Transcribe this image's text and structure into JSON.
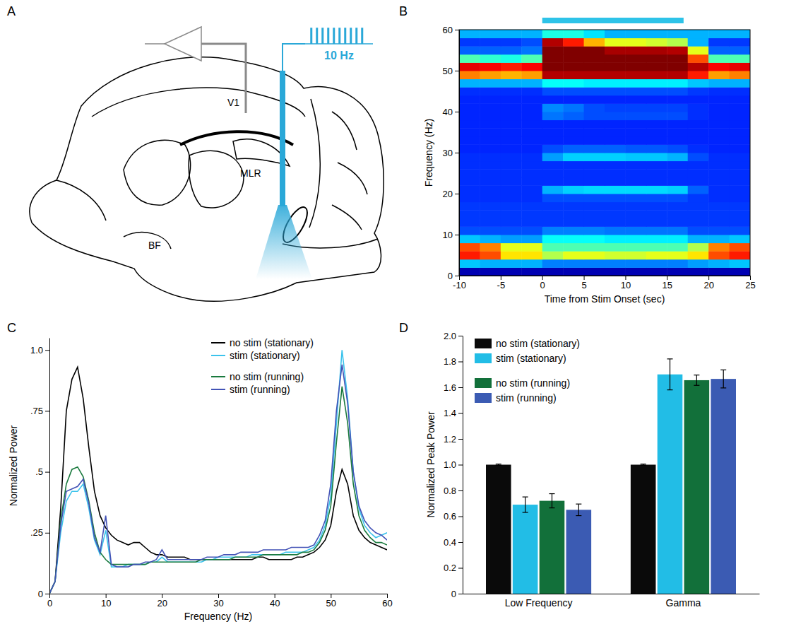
{
  "diagram": {
    "panel": "A",
    "labels": [
      "V1",
      "MLR",
      "BF"
    ],
    "stim_label": "10 Hz"
  },
  "chart_data": [
    {
      "type": "heatmap",
      "panel": "B",
      "x_label": "Time from Stim Onset (sec)",
      "y_label": "Frequency (Hz)",
      "xlim": [
        -10,
        25
      ],
      "ylim": [
        0,
        60
      ],
      "xticks": [
        -10,
        -5,
        0,
        5,
        10,
        15,
        20,
        25
      ],
      "yticks": [
        0,
        10,
        20,
        30,
        40,
        50,
        60
      ],
      "x_bins": [
        -10,
        -7.5,
        -5,
        -2.5,
        0,
        2.5,
        5,
        7.5,
        10,
        12.5,
        15,
        17.5,
        20,
        22.5,
        25
      ],
      "y_bins": [
        0,
        2,
        4,
        6,
        8,
        10,
        12,
        14,
        16,
        18,
        20,
        22,
        24,
        26,
        28,
        30,
        32,
        34,
        36,
        38,
        40,
        42,
        44,
        46,
        48,
        50,
        52,
        54,
        56,
        58,
        60
      ],
      "cells": [
        [
          0.05,
          0.05,
          0.05,
          0.05,
          0.05,
          0.05,
          0.05,
          0.05,
          0.05,
          0.05,
          0.05,
          0.05,
          0.05,
          0.05
        ],
        [
          0.32,
          0.3,
          0.3,
          0.3,
          0.25,
          0.25,
          0.25,
          0.25,
          0.25,
          0.25,
          0.25,
          0.28,
          0.3,
          0.32
        ],
        [
          0.85,
          0.8,
          0.65,
          0.65,
          0.55,
          0.6,
          0.6,
          0.58,
          0.58,
          0.6,
          0.6,
          0.65,
          0.8,
          0.85
        ],
        [
          0.8,
          0.75,
          0.6,
          0.6,
          0.45,
          0.45,
          0.45,
          0.45,
          0.45,
          0.45,
          0.45,
          0.55,
          0.75,
          0.8
        ],
        [
          0.32,
          0.3,
          0.28,
          0.28,
          0.38,
          0.38,
          0.38,
          0.36,
          0.36,
          0.36,
          0.36,
          0.3,
          0.3,
          0.32
        ],
        [
          0.2,
          0.2,
          0.2,
          0.2,
          0.25,
          0.25,
          0.25,
          0.24,
          0.24,
          0.24,
          0.24,
          0.2,
          0.2,
          0.2
        ],
        [
          0.18,
          0.18,
          0.18,
          0.18,
          0.18,
          0.18,
          0.18,
          0.18,
          0.18,
          0.18,
          0.18,
          0.18,
          0.18,
          0.18
        ],
        [
          0.18,
          0.18,
          0.18,
          0.18,
          0.18,
          0.18,
          0.18,
          0.18,
          0.18,
          0.18,
          0.18,
          0.18,
          0.18,
          0.18
        ],
        [
          0.18,
          0.18,
          0.18,
          0.18,
          0.18,
          0.18,
          0.18,
          0.18,
          0.18,
          0.18,
          0.18,
          0.18,
          0.18,
          0.18
        ],
        [
          0.17,
          0.17,
          0.17,
          0.17,
          0.2,
          0.2,
          0.2,
          0.2,
          0.2,
          0.2,
          0.2,
          0.18,
          0.17,
          0.17
        ],
        [
          0.17,
          0.17,
          0.17,
          0.17,
          0.3,
          0.33,
          0.34,
          0.34,
          0.34,
          0.34,
          0.33,
          0.22,
          0.17,
          0.17
        ],
        [
          0.17,
          0.17,
          0.17,
          0.17,
          0.17,
          0.17,
          0.17,
          0.17,
          0.17,
          0.17,
          0.17,
          0.17,
          0.17,
          0.17
        ],
        [
          0.17,
          0.17,
          0.17,
          0.17,
          0.17,
          0.17,
          0.17,
          0.17,
          0.17,
          0.17,
          0.17,
          0.17,
          0.17,
          0.17
        ],
        [
          0.17,
          0.17,
          0.17,
          0.17,
          0.17,
          0.17,
          0.17,
          0.17,
          0.17,
          0.17,
          0.17,
          0.17,
          0.17,
          0.17
        ],
        [
          0.17,
          0.17,
          0.17,
          0.17,
          0.28,
          0.33,
          0.33,
          0.33,
          0.32,
          0.32,
          0.3,
          0.2,
          0.17,
          0.17
        ],
        [
          0.16,
          0.16,
          0.16,
          0.16,
          0.2,
          0.22,
          0.22,
          0.22,
          0.21,
          0.21,
          0.2,
          0.17,
          0.16,
          0.16
        ],
        [
          0.16,
          0.16,
          0.16,
          0.16,
          0.16,
          0.16,
          0.16,
          0.16,
          0.16,
          0.16,
          0.16,
          0.16,
          0.16,
          0.16
        ],
        [
          0.16,
          0.16,
          0.16,
          0.16,
          0.16,
          0.16,
          0.16,
          0.16,
          0.16,
          0.16,
          0.16,
          0.16,
          0.16,
          0.16
        ],
        [
          0.16,
          0.16,
          0.16,
          0.16,
          0.16,
          0.16,
          0.16,
          0.16,
          0.16,
          0.16,
          0.16,
          0.16,
          0.16,
          0.16
        ],
        [
          0.16,
          0.16,
          0.16,
          0.16,
          0.24,
          0.22,
          0.2,
          0.2,
          0.2,
          0.2,
          0.2,
          0.17,
          0.16,
          0.16
        ],
        [
          0.16,
          0.16,
          0.16,
          0.16,
          0.26,
          0.24,
          0.2,
          0.19,
          0.19,
          0.19,
          0.19,
          0.17,
          0.16,
          0.16
        ],
        [
          0.16,
          0.16,
          0.16,
          0.16,
          0.16,
          0.16,
          0.16,
          0.16,
          0.16,
          0.16,
          0.16,
          0.16,
          0.16,
          0.16
        ],
        [
          0.17,
          0.17,
          0.17,
          0.17,
          0.2,
          0.2,
          0.2,
          0.2,
          0.2,
          0.2,
          0.2,
          0.18,
          0.17,
          0.17
        ],
        [
          0.3,
          0.3,
          0.3,
          0.3,
          0.38,
          0.38,
          0.36,
          0.36,
          0.36,
          0.36,
          0.36,
          0.32,
          0.3,
          0.3
        ],
        [
          0.75,
          0.72,
          0.7,
          0.72,
          0.95,
          0.95,
          0.95,
          0.95,
          0.95,
          0.95,
          0.95,
          0.85,
          0.72,
          0.75
        ],
        [
          0.9,
          0.88,
          0.85,
          0.88,
          1,
          1,
          1,
          1,
          1,
          1,
          1,
          0.95,
          0.88,
          0.9
        ],
        [
          0.45,
          0.42,
          0.4,
          0.45,
          1,
          1,
          1,
          1,
          1,
          1,
          1,
          0.8,
          0.45,
          0.45
        ],
        [
          0.22,
          0.22,
          0.22,
          0.24,
          1,
          1,
          1,
          0.96,
          0.96,
          0.96,
          0.95,
          0.6,
          0.22,
          0.22
        ],
        [
          0.18,
          0.18,
          0.18,
          0.2,
          0.95,
          0.85,
          0.7,
          0.6,
          0.6,
          0.58,
          0.55,
          0.3,
          0.18,
          0.18
        ],
        [
          0.3,
          0.3,
          0.3,
          0.3,
          0.4,
          0.4,
          0.35,
          0.3,
          0.3,
          0.3,
          0.3,
          0.3,
          0.3,
          0.3
        ]
      ],
      "zlim": [
        0,
        1
      ],
      "stim_interval": [
        0,
        17
      ]
    },
    {
      "type": "line",
      "panel": "C",
      "x_label": "Frequency (Hz)",
      "y_label": "Normalized Power",
      "xlim": [
        0,
        60
      ],
      "ylim": [
        0,
        1.05
      ],
      "xticks": [
        0,
        10,
        20,
        30,
        40,
        50,
        60
      ],
      "yticks": [
        0,
        {
          "value": 0.25,
          "label": ".25"
        },
        {
          "value": 0.5,
          "label": ".5"
        },
        {
          "value": 0.75,
          "label": ".75"
        },
        {
          "value": 1,
          "label": "1.0"
        }
      ],
      "legend": "top",
      "x": [
        0,
        1,
        2,
        3,
        4,
        5,
        6,
        7,
        8,
        9,
        10,
        11,
        12,
        13,
        14,
        15,
        16,
        17,
        18,
        19,
        20,
        21,
        22,
        23,
        24,
        25,
        26,
        27,
        28,
        29,
        30,
        31,
        32,
        33,
        34,
        35,
        36,
        37,
        38,
        39,
        40,
        41,
        42,
        43,
        44,
        45,
        46,
        47,
        48,
        49,
        50,
        51,
        52,
        53,
        54,
        55,
        56,
        57,
        58,
        59,
        60
      ],
      "series": [
        {
          "name": "no stim (stationary)",
          "color": "#000000",
          "values": [
            0,
            0.05,
            0.35,
            0.75,
            0.88,
            0.93,
            0.8,
            0.6,
            0.42,
            0.32,
            0.27,
            0.24,
            0.22,
            0.21,
            0.2,
            0.21,
            0.21,
            0.19,
            0.17,
            0.16,
            0.16,
            0.15,
            0.15,
            0.15,
            0.15,
            0.14,
            0.14,
            0.14,
            0.14,
            0.14,
            0.14,
            0.14,
            0.14,
            0.14,
            0.14,
            0.14,
            0.14,
            0.15,
            0.15,
            0.14,
            0.14,
            0.14,
            0.14,
            0.14,
            0.15,
            0.15,
            0.16,
            0.17,
            0.19,
            0.22,
            0.28,
            0.42,
            0.51,
            0.45,
            0.32,
            0.26,
            0.23,
            0.21,
            0.2,
            0.19,
            0.18
          ]
        },
        {
          "name": "stim (stationary)",
          "color": "#3cc3ec",
          "values": [
            0,
            0.05,
            0.25,
            0.38,
            0.42,
            0.42,
            0.45,
            0.35,
            0.22,
            0.16,
            0.26,
            0.11,
            0.11,
            0.11,
            0.12,
            0.12,
            0.12,
            0.12,
            0.13,
            0.13,
            0.15,
            0.13,
            0.13,
            0.13,
            0.13,
            0.13,
            0.13,
            0.13,
            0.14,
            0.14,
            0.15,
            0.15,
            0.15,
            0.15,
            0.15,
            0.15,
            0.16,
            0.16,
            0.16,
            0.16,
            0.16,
            0.16,
            0.17,
            0.17,
            0.17,
            0.17,
            0.18,
            0.19,
            0.22,
            0.28,
            0.4,
            0.7,
            1.0,
            0.8,
            0.5,
            0.35,
            0.28,
            0.25,
            0.23,
            0.24,
            0.25
          ]
        },
        {
          "name": "no stim (running)",
          "color": "#1a7a3e",
          "values": [
            0,
            0.05,
            0.3,
            0.45,
            0.51,
            0.52,
            0.48,
            0.38,
            0.25,
            0.17,
            0.14,
            0.12,
            0.12,
            0.12,
            0.12,
            0.12,
            0.12,
            0.12,
            0.13,
            0.13,
            0.13,
            0.13,
            0.13,
            0.13,
            0.13,
            0.13,
            0.13,
            0.14,
            0.14,
            0.14,
            0.14,
            0.14,
            0.14,
            0.15,
            0.15,
            0.15,
            0.15,
            0.15,
            0.16,
            0.16,
            0.16,
            0.16,
            0.16,
            0.16,
            0.16,
            0.17,
            0.17,
            0.18,
            0.21,
            0.26,
            0.36,
            0.62,
            0.85,
            0.7,
            0.45,
            0.32,
            0.26,
            0.23,
            0.21,
            0.21,
            0.2
          ]
        },
        {
          "name": "stim (running)",
          "color": "#4353b6",
          "values": [
            0,
            0.05,
            0.28,
            0.42,
            0.43,
            0.44,
            0.47,
            0.37,
            0.23,
            0.17,
            0.32,
            0.12,
            0.11,
            0.11,
            0.11,
            0.12,
            0.12,
            0.13,
            0.13,
            0.14,
            0.18,
            0.14,
            0.14,
            0.14,
            0.14,
            0.14,
            0.14,
            0.14,
            0.15,
            0.15,
            0.15,
            0.16,
            0.16,
            0.16,
            0.17,
            0.17,
            0.17,
            0.17,
            0.18,
            0.18,
            0.18,
            0.18,
            0.18,
            0.19,
            0.19,
            0.19,
            0.19,
            0.2,
            0.24,
            0.3,
            0.45,
            0.75,
            0.94,
            0.78,
            0.5,
            0.36,
            0.3,
            0.27,
            0.25,
            0.24,
            0.22
          ]
        }
      ]
    },
    {
      "type": "bar",
      "panel": "D",
      "y_label": "Normalized Peak Power",
      "ylim": [
        0,
        2
      ],
      "yticks": [
        0,
        0.2,
        0.4,
        0.6,
        0.8,
        {
          "value": 1,
          "label": "1.0"
        },
        1.2,
        1.4,
        1.6,
        1.8,
        {
          "value": 2,
          "label": "2.0"
        }
      ],
      "categories": [
        "Low Frequency",
        "Gamma"
      ],
      "legend": "top-left",
      "series": [
        {
          "name": "no stim (stationary)",
          "color": "#0a0a0a",
          "values": [
            1,
            1
          ],
          "errors": [
            0.005,
            0.005
          ]
        },
        {
          "name": "stim (stationary)",
          "color": "#22bde6",
          "values": [
            0.69,
            1.7
          ],
          "errors": [
            0.06,
            0.12
          ]
        },
        {
          "name": "no stim (running)",
          "color": "#12703a",
          "values": [
            0.72,
            1.655
          ],
          "errors": [
            0.055,
            0.04
          ]
        },
        {
          "name": "stim (running)",
          "color": "#3b5bb3",
          "values": [
            0.65,
            1.665
          ],
          "errors": [
            0.045,
            0.07
          ]
        }
      ]
    }
  ]
}
